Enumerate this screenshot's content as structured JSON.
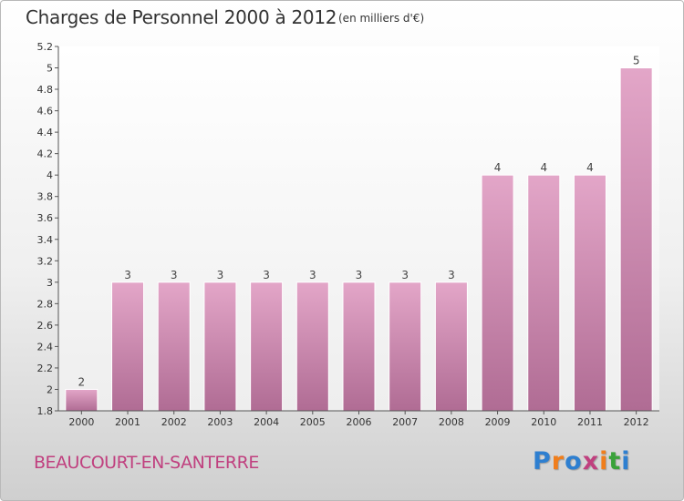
{
  "header": {
    "title": "Charges de Personnel 2000 à 2012",
    "subtitle": "(en milliers d'€)"
  },
  "footer": {
    "commune": "BEAUCOURT-EN-SANTERRE",
    "brand": "Proxiti",
    "brand_colors": [
      "#2e7fd0",
      "#f07e1c",
      "#2e7fd0",
      "#c0407f",
      "#f07e1c",
      "#3aa23a",
      "#2e7fd0"
    ]
  },
  "chart_data": {
    "type": "bar",
    "categories": [
      "2000",
      "2001",
      "2002",
      "2003",
      "2004",
      "2005",
      "2006",
      "2007",
      "2008",
      "2009",
      "2010",
      "2011",
      "2012"
    ],
    "values": [
      2,
      3,
      3,
      3,
      3,
      3,
      3,
      3,
      3,
      4,
      4,
      4,
      5
    ],
    "data_labels": [
      "2",
      "3",
      "3",
      "3",
      "3",
      "3",
      "3",
      "3",
      "3",
      "4",
      "4",
      "4",
      "5"
    ],
    "ylim": [
      1.8,
      5.2
    ],
    "yticks": [
      "1.8",
      "2",
      "2.2",
      "2.4",
      "2.6",
      "2.8",
      "3",
      "3.2",
      "3.4",
      "3.6",
      "3.8",
      "4",
      "4.2",
      "4.4",
      "4.6",
      "4.8",
      "5",
      "5.2"
    ],
    "bar_color": "#d98cb3",
    "grid": false,
    "xlabel": "",
    "ylabel": ""
  }
}
